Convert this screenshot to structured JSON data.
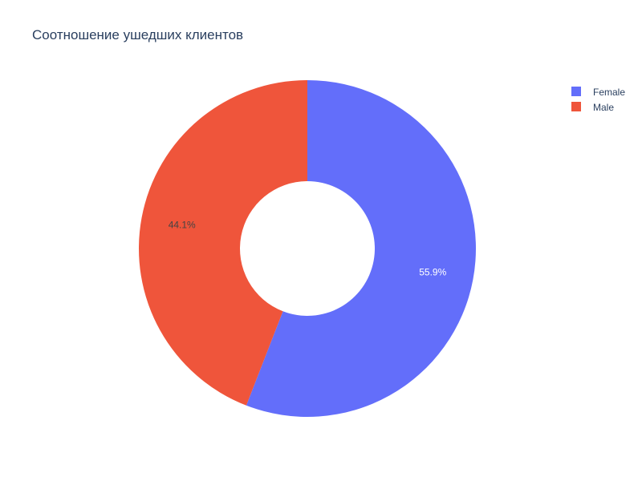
{
  "chart_data": {
    "type": "pie",
    "title": "Соотношение ушедших клиентов",
    "hole": 0.4,
    "start_angle_deg": 90,
    "direction": "clockwise",
    "slices": [
      {
        "label": "Female",
        "value": 55.9,
        "text": "55.9%",
        "color": "#636efa",
        "text_color": "#ffffff"
      },
      {
        "label": "Male",
        "value": 44.1,
        "text": "44.1%",
        "color": "#ef553b",
        "text_color": "#444444"
      }
    ],
    "legend": {
      "position": "top-right",
      "items": [
        "Female",
        "Male"
      ]
    }
  }
}
